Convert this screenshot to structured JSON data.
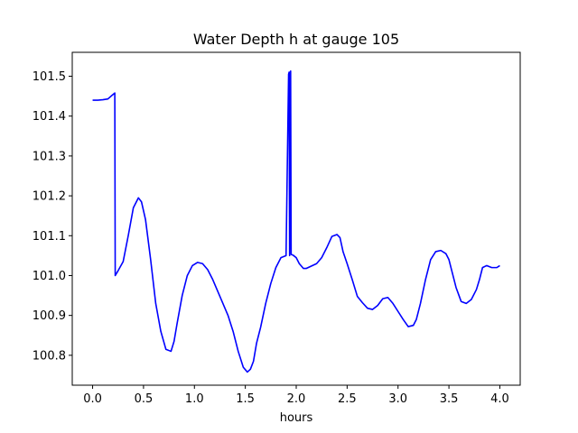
{
  "chart_data": {
    "type": "line",
    "title": "Water Depth h at gauge 105",
    "xlabel": "hours",
    "ylabel": "",
    "xlim": [
      -0.2,
      4.2
    ],
    "ylim": [
      100.725,
      101.56
    ],
    "xticks": [
      0.0,
      0.5,
      1.0,
      1.5,
      2.0,
      2.5,
      3.0,
      3.5,
      4.0
    ],
    "xtick_labels": [
      "0.0",
      "0.5",
      "1.0",
      "1.5",
      "2.0",
      "2.5",
      "3.0",
      "3.5",
      "4.0"
    ],
    "yticks": [
      100.8,
      100.9,
      101.0,
      101.1,
      101.2,
      101.3,
      101.4,
      101.5
    ],
    "ytick_labels": [
      "100.8",
      "100.9",
      "101.0",
      "101.1",
      "101.2",
      "101.3",
      "101.4",
      "101.5"
    ],
    "grid": false,
    "series": [
      {
        "color": "#0000ff",
        "x": [
          0.0,
          0.05,
          0.1,
          0.15,
          0.19,
          0.218,
          0.222,
          0.25,
          0.3,
          0.35,
          0.4,
          0.45,
          0.48,
          0.52,
          0.57,
          0.62,
          0.67,
          0.72,
          0.77,
          0.8,
          0.83,
          0.88,
          0.93,
          0.98,
          1.03,
          1.08,
          1.13,
          1.18,
          1.23,
          1.28,
          1.33,
          1.38,
          1.43,
          1.48,
          1.52,
          1.55,
          1.58,
          1.61,
          1.65,
          1.7,
          1.75,
          1.8,
          1.85,
          1.9,
          1.925,
          1.93,
          1.935,
          1.94,
          1.945,
          1.95,
          1.97,
          2.0,
          2.03,
          2.07,
          2.1,
          2.15,
          2.2,
          2.25,
          2.3,
          2.35,
          2.4,
          2.43,
          2.46,
          2.5,
          2.55,
          2.6,
          2.65,
          2.7,
          2.75,
          2.8,
          2.85,
          2.9,
          2.95,
          3.0,
          3.05,
          3.1,
          3.15,
          3.18,
          3.22,
          3.27,
          3.32,
          3.37,
          3.42,
          3.47,
          3.5,
          3.53,
          3.57,
          3.62,
          3.67,
          3.72,
          3.77,
          3.8,
          3.83,
          3.87,
          3.92,
          3.97,
          4.0
        ],
        "y": [
          101.44,
          101.44,
          101.441,
          101.443,
          101.452,
          101.458,
          101.0,
          101.012,
          101.035,
          101.1,
          101.17,
          101.195,
          101.185,
          101.14,
          101.04,
          100.93,
          100.86,
          100.815,
          100.81,
          100.835,
          100.88,
          100.95,
          101.0,
          101.025,
          101.033,
          101.03,
          101.015,
          100.99,
          100.96,
          100.93,
          100.9,
          100.86,
          100.81,
          100.77,
          100.758,
          100.765,
          100.785,
          100.83,
          100.87,
          100.93,
          100.98,
          101.02,
          101.045,
          101.05,
          101.505,
          101.51,
          101.05,
          101.51,
          101.513,
          101.053,
          101.051,
          101.045,
          101.03,
          101.018,
          101.018,
          101.024,
          101.03,
          101.045,
          101.07,
          101.098,
          101.103,
          101.095,
          101.06,
          101.03,
          100.99,
          100.948,
          100.932,
          100.918,
          100.915,
          100.925,
          100.942,
          100.945,
          100.93,
          100.91,
          100.89,
          100.872,
          100.875,
          100.89,
          100.93,
          100.99,
          101.04,
          101.06,
          101.063,
          101.055,
          101.04,
          101.01,
          100.97,
          100.935,
          100.93,
          100.94,
          100.965,
          100.99,
          101.02,
          101.025,
          101.02,
          101.02,
          101.025
        ]
      }
    ]
  }
}
